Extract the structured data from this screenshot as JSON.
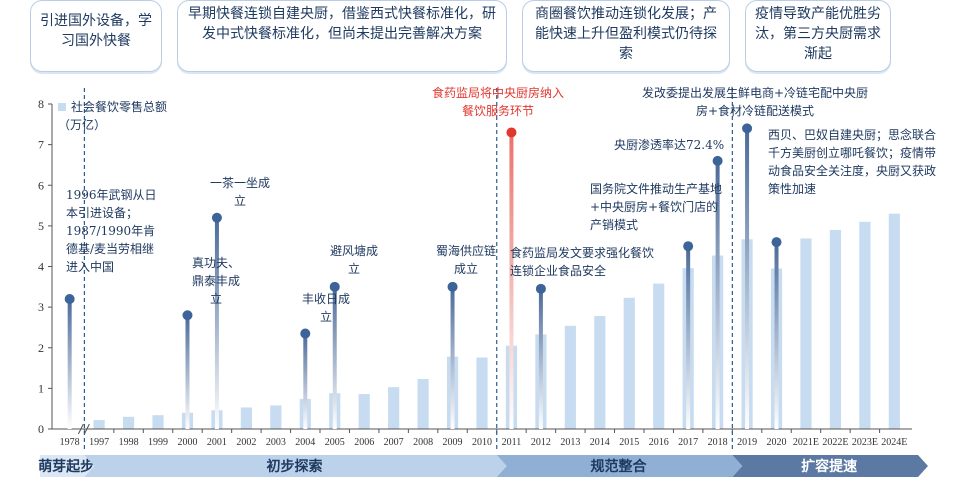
{
  "eras": {
    "boxes": [
      {
        "text": "引进国外设备，学习国外快餐"
      },
      {
        "text": "早期快餐连锁自建央厨，借鉴西式快餐标准化，研发中式快餐标准化，但尚未提出完善解决方案"
      },
      {
        "text": "商圈餐饮推动连锁化发展；产能快速上升但盈利模式仍待探索"
      },
      {
        "text": "疫情导致产能优胜劣汰，第三方央厨需求渐起"
      }
    ],
    "stages": [
      "萌芽起步",
      "初步探索",
      "规范整合",
      "扩容提速"
    ]
  },
  "chart_data": {
    "type": "bar",
    "legend": "社会餐饮零售总额（万亿）",
    "legend_position": "top-left",
    "categories": [
      "1978",
      "1997",
      "1998",
      "1999",
      "2000",
      "2001",
      "2002",
      "2003",
      "2004",
      "2005",
      "2006",
      "2007",
      "2008",
      "2009",
      "2010",
      "2011",
      "2012",
      "2013",
      "2014",
      "2015",
      "2016",
      "2017",
      "2018",
      "2019",
      "2020",
      "2021E",
      "2022E",
      "2023E",
      "2024E"
    ],
    "values": [
      0.01,
      0.22,
      0.3,
      0.34,
      0.4,
      0.46,
      0.53,
      0.58,
      0.74,
      0.88,
      0.86,
      1.03,
      1.23,
      1.78,
      1.76,
      2.05,
      2.33,
      2.54,
      2.78,
      3.23,
      3.58,
      3.96,
      4.27,
      4.67,
      3.95,
      4.69,
      4.9,
      5.1,
      5.3
    ],
    "ylim": [
      0,
      8
    ],
    "yticks": [
      0,
      1,
      2,
      3,
      4,
      5,
      6,
      7,
      8
    ],
    "grid": false,
    "annotations": [
      {
        "text": "1996年武钢从日本引进设备；1987/1990年肯德基/麦当劳相继进入中国",
        "category": "1978",
        "value": 3.2
      },
      {
        "text": "真功夫、鼎泰丰成立",
        "category": "2000",
        "value": 2.8
      },
      {
        "text": "一茶一坐成立",
        "category": "2001",
        "value": 5.2
      },
      {
        "text": "丰收日成立",
        "category": "2004",
        "value": 2.35
      },
      {
        "text": "避风塘成立",
        "category": "2005",
        "value": 3.5
      },
      {
        "text": "蜀海供应链成立",
        "category": "2009",
        "value": 3.5
      },
      {
        "text": "食药监局将中央厨房纳入餐饮服务环节",
        "category": "2011",
        "value": 7.3,
        "highlight": true
      },
      {
        "text": "食药监局发文要求强化餐饮连锁企业食品安全",
        "category": "2012",
        "value": 3.45
      },
      {
        "text": "国务院文件推动生产基地+中央厨房+餐饮门店的产销模式",
        "category": "2017",
        "value": 4.5
      },
      {
        "text": "央厨渗透率达72.4%",
        "category": "2018",
        "value": 6.6
      },
      {
        "text": "发改委提出发展生鲜电商+冷链宅配中央厨房+食材冷链配送模式",
        "category": "2019",
        "value": 7.4
      },
      {
        "text": "西贝、巴奴自建央厨；思念联合千方美厨创立哪吒餐饮；疫情带动食品安全关注度，央厨又获政策性加速",
        "category": "2020",
        "value": 4.6
      }
    ]
  }
}
